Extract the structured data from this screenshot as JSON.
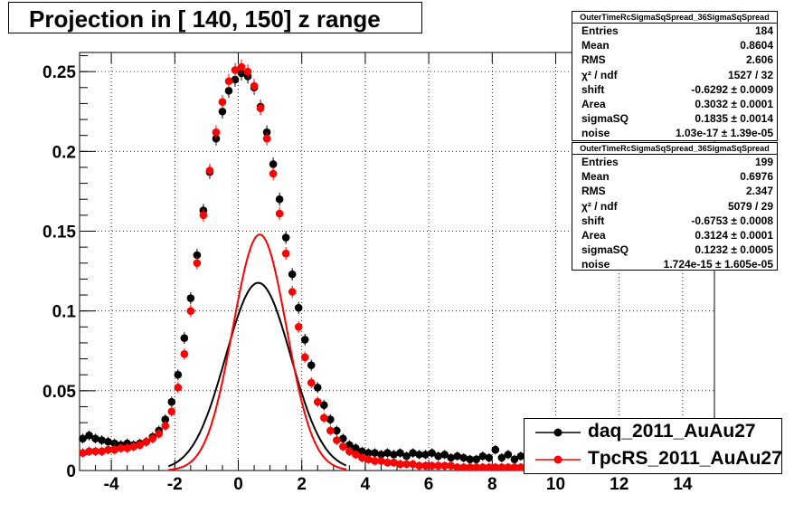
{
  "title": "Projection in [ 140, 150] z range",
  "colors": {
    "daq": "#000000",
    "tpcrs": "#ff0000"
  },
  "legend": [
    {
      "label": "daq_2011_AuAu27",
      "color": "#000000"
    },
    {
      "label": "TpcRS_2011_AuAu27",
      "color": "#ff0000"
    }
  ],
  "stats": [
    {
      "title": "OuterTimeRcSigmaSqSpread_36SigmaSqSpread",
      "rows": [
        {
          "k": "Entries",
          "v": "184"
        },
        {
          "k": "Mean",
          "v": "0.8604"
        },
        {
          "k": "RMS",
          "v": "2.606"
        },
        {
          "k": "χ² / ndf",
          "v": "1527 / 32"
        },
        {
          "k": "shift",
          "v": "-0.6292 ± 0.0009"
        },
        {
          "k": "Area",
          "v": "0.3032 ± 0.0001"
        },
        {
          "k": "sigmaSQ",
          "v": "0.1835 ± 0.0014"
        },
        {
          "k": "noise",
          "v": "1.03e-17 ± 1.39e-05"
        }
      ]
    },
    {
      "title": "OuterTimeRcSigmaSqSpread_36SigmaSqSpread",
      "rows": [
        {
          "k": "Entries",
          "v": "199"
        },
        {
          "k": "Mean",
          "v": "0.6976"
        },
        {
          "k": "RMS",
          "v": "2.347"
        },
        {
          "k": "χ² / ndf",
          "v": "5079 / 29"
        },
        {
          "k": "shift",
          "v": "-0.6753 ± 0.0008"
        },
        {
          "k": "Area",
          "v": "0.3124 ± 0.0001"
        },
        {
          "k": "sigmaSQ",
          "v": "0.1232 ± 0.0005"
        },
        {
          "k": "noise",
          "v": "1.724e-15 ± 1.605e-05"
        }
      ]
    }
  ],
  "chart_data": {
    "type": "scatter",
    "title": "Projection in [ 140, 150] z range",
    "xlim": [
      -5,
      15
    ],
    "ylim": [
      0,
      0.262
    ],
    "x_ticks": [
      -4,
      -2,
      0,
      2,
      4,
      6,
      8,
      10,
      12,
      14
    ],
    "x_tick_labels": [
      "-4",
      "-2",
      "0",
      "2",
      "4",
      "6",
      "8",
      "10",
      "12",
      "14"
    ],
    "y_ticks": [
      0,
      0.05,
      0.1,
      0.15,
      0.2,
      0.25
    ],
    "y_tick_labels": [
      "0",
      "0.05",
      "0.1",
      "0.15",
      "0.2",
      "0.25"
    ],
    "grid": true,
    "legend_position": "bottom-right",
    "series": [
      {
        "name": "daq_2011_AuAu27",
        "color": "#000000",
        "x": [
          -4.9,
          -4.7,
          -4.5,
          -4.3,
          -4.1,
          -3.9,
          -3.7,
          -3.5,
          -3.3,
          -3.1,
          -2.9,
          -2.7,
          -2.5,
          -2.3,
          -2.1,
          -1.9,
          -1.7,
          -1.5,
          -1.3,
          -1.1,
          -0.9,
          -0.7,
          -0.5,
          -0.3,
          -0.1,
          0.1,
          0.3,
          0.5,
          0.7,
          0.9,
          1.1,
          1.3,
          1.5,
          1.7,
          1.9,
          2.1,
          2.3,
          2.5,
          2.7,
          2.9,
          3.1,
          3.3,
          3.5,
          3.7,
          3.9,
          4.1,
          4.3,
          4.5,
          4.7,
          4.9,
          5.1,
          5.3,
          5.5,
          5.7,
          5.9,
          6.1,
          6.3,
          6.5,
          6.7,
          6.9,
          7.1,
          7.3,
          7.5,
          7.7,
          7.9,
          8.1,
          8.3,
          8.5,
          8.7,
          8.9,
          9.1,
          9.3
        ],
        "y": [
          0.02,
          0.022,
          0.02,
          0.019,
          0.018,
          0.017,
          0.016,
          0.017,
          0.016,
          0.017,
          0.018,
          0.021,
          0.025,
          0.032,
          0.043,
          0.06,
          0.083,
          0.108,
          0.135,
          0.163,
          0.187,
          0.208,
          0.225,
          0.238,
          0.245,
          0.249,
          0.247,
          0.24,
          0.228,
          0.212,
          0.192,
          0.17,
          0.146,
          0.123,
          0.102,
          0.082,
          0.066,
          0.052,
          0.041,
          0.032,
          0.025,
          0.02,
          0.016,
          0.014,
          0.012,
          0.011,
          0.011,
          0.01,
          0.011,
          0.01,
          0.011,
          0.009,
          0.011,
          0.01,
          0.01,
          0.011,
          0.009,
          0.01,
          0.008,
          0.009,
          0.008,
          0.007,
          0.007,
          0.009,
          0.008,
          0.013,
          0.008,
          0.01,
          0.007,
          0.009,
          0.008,
          0.007
        ]
      },
      {
        "name": "TpcRS_2011_AuAu27",
        "color": "#ff0000",
        "x": [
          -4.9,
          -4.7,
          -4.5,
          -4.3,
          -4.1,
          -3.9,
          -3.7,
          -3.5,
          -3.3,
          -3.1,
          -2.9,
          -2.7,
          -2.5,
          -2.3,
          -2.1,
          -1.9,
          -1.7,
          -1.5,
          -1.3,
          -1.1,
          -0.9,
          -0.7,
          -0.5,
          -0.3,
          -0.1,
          0.1,
          0.3,
          0.5,
          0.7,
          0.9,
          1.1,
          1.3,
          1.5,
          1.7,
          1.9,
          2.1,
          2.3,
          2.5,
          2.7,
          2.9,
          3.1,
          3.3,
          3.5,
          3.7,
          3.9,
          4.1,
          4.3,
          4.5,
          4.7,
          4.9,
          5.1,
          5.3,
          5.5,
          5.7,
          5.9,
          6.1,
          6.3,
          6.5,
          6.7,
          6.9,
          7.1,
          7.3,
          7.5,
          7.7,
          7.9,
          8.1,
          8.3,
          8.5,
          8.7,
          8.9
        ],
        "y": [
          0.011,
          0.012,
          0.012,
          0.012,
          0.013,
          0.013,
          0.014,
          0.014,
          0.015,
          0.016,
          0.018,
          0.02,
          0.023,
          0.028,
          0.037,
          0.052,
          0.073,
          0.1,
          0.13,
          0.16,
          0.188,
          0.212,
          0.231,
          0.244,
          0.251,
          0.253,
          0.25,
          0.241,
          0.227,
          0.208,
          0.186,
          0.161,
          0.136,
          0.112,
          0.09,
          0.071,
          0.055,
          0.043,
          0.033,
          0.025,
          0.019,
          0.015,
          0.012,
          0.01,
          0.008,
          0.007,
          0.006,
          0.006,
          0.005,
          0.005,
          0.004,
          0.004,
          0.004,
          0.003,
          0.003,
          0.003,
          0.003,
          0.003,
          0.003,
          0.002,
          0.002,
          0.002,
          0.002,
          0.002,
          0.002,
          0.002,
          0.002,
          0.002,
          0.002,
          0.002
        ]
      }
    ],
    "fits": [
      {
        "series": "daq_2011_AuAu27",
        "shift": -0.6292,
        "area": 0.3032,
        "sigmaSQ": 0.1835,
        "noise": 1.03e-17
      },
      {
        "series": "TpcRS_2011_AuAu27",
        "shift": -0.6753,
        "area": 0.3124,
        "sigmaSQ": 0.1232,
        "noise": 1.724e-15
      }
    ]
  }
}
